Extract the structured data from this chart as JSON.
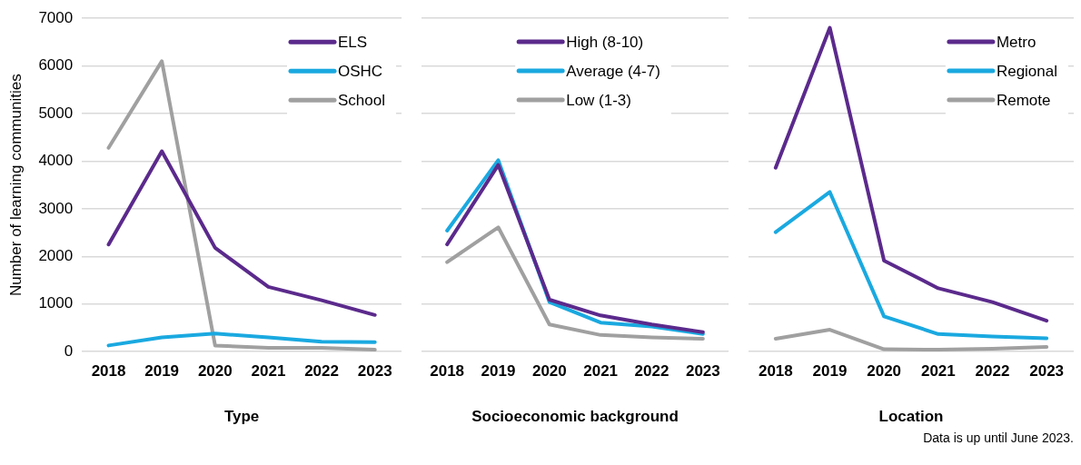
{
  "chart_data": [
    {
      "type": "line",
      "xlabel": "Type",
      "ylabel": "Number of learning communities",
      "categories": [
        "2018",
        "2019",
        "2020",
        "2021",
        "2022",
        "2023"
      ],
      "ylim": [
        0,
        7000
      ],
      "yticks": [
        0,
        1000,
        2000,
        3000,
        4000,
        5000,
        6000,
        7000
      ],
      "grid": "y",
      "legend": "top right",
      "marker": "none",
      "line_style": "solid",
      "series": [
        {
          "name": "ELS",
          "color": "#5b2a8c",
          "values": [
            2250,
            4210,
            2180,
            1360,
            1080,
            770
          ]
        },
        {
          "name": "OSHC",
          "color": "#1aa9e0",
          "values": [
            130,
            300,
            380,
            300,
            210,
            200
          ]
        },
        {
          "name": "School",
          "color": "#a0a0a0",
          "values": [
            4280,
            6100,
            130,
            80,
            80,
            40
          ]
        }
      ]
    },
    {
      "type": "line",
      "xlabel": "Socioeconomic background",
      "categories": [
        "2018",
        "2019",
        "2020",
        "2021",
        "2022",
        "2023"
      ],
      "ylim": [
        0,
        7000
      ],
      "yticks": [
        0,
        1000,
        2000,
        3000,
        4000,
        5000,
        6000,
        7000
      ],
      "tick_labels": "x",
      "grid": "y",
      "legend": "top",
      "marker": "none",
      "line_style": "solid",
      "series": [
        {
          "name": "High (8-10)",
          "color": "#5b2a8c",
          "values": [
            2250,
            3920,
            1090,
            760,
            570,
            410
          ]
        },
        {
          "name": "Average (4-7)",
          "color": "#1aa9e0",
          "values": [
            2540,
            4020,
            1040,
            610,
            530,
            370
          ]
        },
        {
          "name": "Low (1-3)",
          "color": "#a0a0a0",
          "values": [
            1880,
            2610,
            570,
            350,
            300,
            270
          ]
        }
      ]
    },
    {
      "type": "line",
      "xlabel": "Location",
      "categories": [
        "2018",
        "2019",
        "2020",
        "2021",
        "2022",
        "2023"
      ],
      "ylim": [
        0,
        7000
      ],
      "yticks": [
        0,
        1000,
        2000,
        3000,
        4000,
        5000,
        6000,
        7000
      ],
      "tick_labels": "x",
      "grid": "y",
      "legend": "top right",
      "marker": "none",
      "line_style": "solid",
      "annotations": [
        "Data is up until June 2023."
      ],
      "series": [
        {
          "name": "Metro",
          "color": "#5b2a8c",
          "values": [
            3860,
            6800,
            1910,
            1330,
            1040,
            650
          ]
        },
        {
          "name": "Regional",
          "color": "#1aa9e0",
          "values": [
            2510,
            3350,
            740,
            370,
            320,
            280
          ]
        },
        {
          "name": "Remote",
          "color": "#a0a0a0",
          "values": [
            270,
            460,
            50,
            40,
            60,
            100
          ]
        }
      ]
    }
  ]
}
